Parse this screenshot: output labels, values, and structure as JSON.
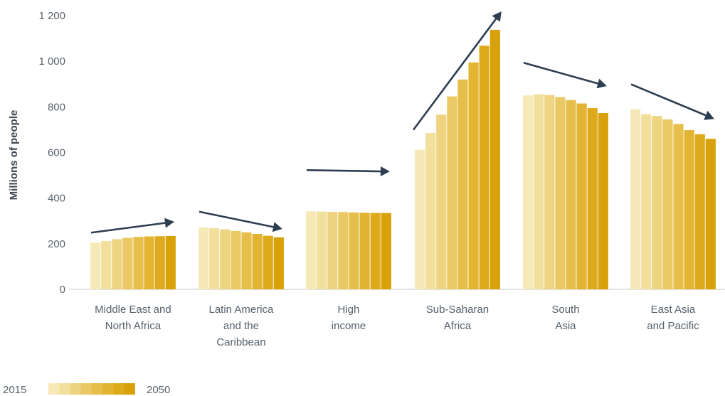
{
  "chart_data": {
    "type": "bar",
    "ylabel": "Millions of people",
    "ylim": [
      0,
      1200
    ],
    "yticks": [
      0,
      200,
      400,
      600,
      800,
      1000,
      1200
    ],
    "ytick_labels": [
      "0",
      "200",
      "400",
      "600",
      "800",
      "1 000",
      "1 200"
    ],
    "years": [
      2015,
      2020,
      2025,
      2030,
      2035,
      2040,
      2045,
      2050
    ],
    "legend": {
      "start_label": "2015",
      "end_label": "2050"
    },
    "categories": [
      {
        "lines": [
          "Middle East and",
          "North Africa"
        ],
        "trend": "up",
        "values": [
          205,
          212,
          220,
          226,
          230,
          232,
          233,
          234
        ]
      },
      {
        "lines": [
          "Latin America",
          "and the",
          "Caribbean"
        ],
        "trend": "down",
        "values": [
          272,
          268,
          263,
          256,
          250,
          243,
          235,
          228
        ]
      },
      {
        "lines": [
          "High",
          "income"
        ],
        "trend": "flat",
        "values": [
          342,
          341,
          340,
          339,
          337,
          336,
          335,
          335
        ]
      },
      {
        "lines": [
          "Sub-Saharan",
          "Africa"
        ],
        "trend": "up",
        "values": [
          612,
          686,
          766,
          846,
          920,
          995,
          1068,
          1138
        ]
      },
      {
        "lines": [
          "South",
          "Asia"
        ],
        "trend": "down",
        "values": [
          850,
          855,
          852,
          843,
          830,
          815,
          795,
          773
        ]
      },
      {
        "lines": [
          "East Asia",
          "and Pacific"
        ],
        "trend": "down",
        "values": [
          790,
          768,
          760,
          745,
          725,
          698,
          680,
          660
        ]
      }
    ],
    "colors": {
      "bar_gradient": [
        "#f6e9b8",
        "#f2df9c",
        "#eed480",
        "#eac964",
        "#e6be4a",
        "#e2b432",
        "#ddaa1c",
        "#d8a10a"
      ],
      "arrow": "#2c3e50",
      "axis": "#c8c8c8"
    },
    "grid": false
  }
}
